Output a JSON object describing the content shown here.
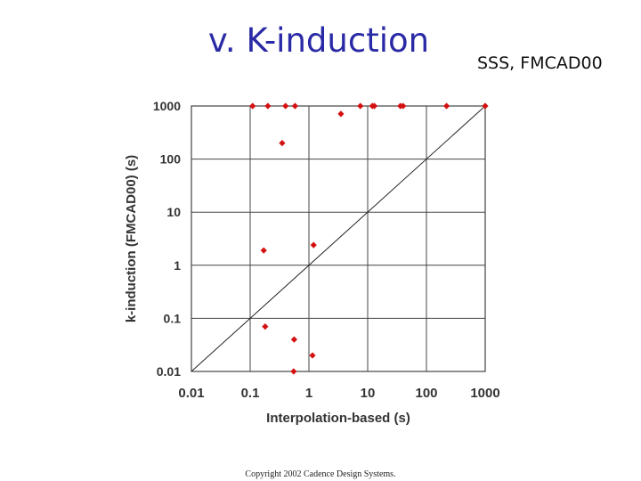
{
  "slide": {
    "title": "v. K-induction",
    "subtitle": "SSS, FMCAD00",
    "copyright": "Copyright 2002 Cadence Design Systems."
  },
  "colors": {
    "title": "#2a2aa6",
    "points": "#d41010",
    "grid": "#444444"
  },
  "chart_data": {
    "type": "scatter",
    "title": "",
    "xlabel": "Interpolation-based (s)",
    "ylabel": "k-induction (FMCAD00) (s)",
    "xscale": "log",
    "yscale": "log",
    "xlim": [
      0.01,
      1000
    ],
    "ylim": [
      0.01,
      1000
    ],
    "grid": true,
    "reference_line": "y = x",
    "x_ticks": [
      "0.01",
      "0.1",
      "1",
      "10",
      "100",
      "1000"
    ],
    "y_ticks": [
      "0.01",
      "0.1",
      "1",
      "10",
      "100",
      "1000"
    ],
    "points": [
      {
        "x": 0.11,
        "y": 1000
      },
      {
        "x": 0.2,
        "y": 1000
      },
      {
        "x": 0.4,
        "y": 1000
      },
      {
        "x": 0.58,
        "y": 1000
      },
      {
        "x": 7.5,
        "y": 1000
      },
      {
        "x": 12,
        "y": 1000
      },
      {
        "x": 13,
        "y": 1000
      },
      {
        "x": 36,
        "y": 1000
      },
      {
        "x": 40,
        "y": 1000
      },
      {
        "x": 220,
        "y": 1000
      },
      {
        "x": 1000,
        "y": 1000
      },
      {
        "x": 3.5,
        "y": 710
      },
      {
        "x": 0.35,
        "y": 200
      },
      {
        "x": 1.2,
        "y": 2.4
      },
      {
        "x": 0.17,
        "y": 1.9
      },
      {
        "x": 0.18,
        "y": 0.07
      },
      {
        "x": 0.56,
        "y": 0.04
      },
      {
        "x": 1.15,
        "y": 0.02
      },
      {
        "x": 0.55,
        "y": 0.01
      }
    ]
  }
}
